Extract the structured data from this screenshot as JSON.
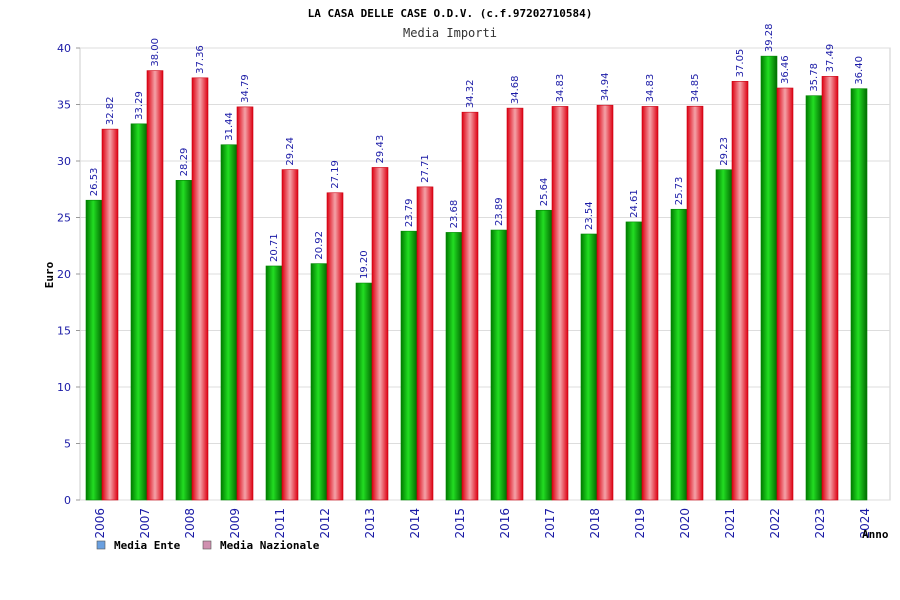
{
  "chart_data": {
    "type": "bar",
    "title": "LA CASA DELLE CASE O.D.V. (c.f.97202710584)",
    "subtitle": "Media Importi",
    "xlabel": "Anno",
    "ylabel": "Euro",
    "ylim": [
      0,
      40
    ],
    "yticks": [
      0,
      5,
      10,
      15,
      20,
      25,
      30,
      35,
      40
    ],
    "grid": true,
    "legend_position": "bottom-left",
    "categories": [
      "2006",
      "2007",
      "2008",
      "2009",
      "2011",
      "2012",
      "2013",
      "2014",
      "2015",
      "2016",
      "2017",
      "2018",
      "2019",
      "2020",
      "2021",
      "2022",
      "2023",
      "2024"
    ],
    "series": [
      {
        "name": "Media Ente",
        "color": "#00aa00",
        "legend_color": "#6aa0e0",
        "values": [
          26.53,
          33.29,
          28.29,
          31.44,
          20.71,
          20.92,
          19.2,
          23.79,
          23.68,
          23.89,
          25.64,
          23.54,
          24.61,
          25.73,
          29.23,
          39.28,
          35.78,
          36.4
        ],
        "labels": [
          "26.53",
          "33.29",
          "28.29",
          "31.44",
          "20.71",
          "20.92",
          "19.20",
          "23.79",
          "23.68",
          "23.89",
          "25.64",
          "23.54",
          "24.61",
          "25.73",
          "29.23",
          "39.28",
          "35.78",
          "36.40"
        ]
      },
      {
        "name": "Media Nazionale",
        "color": "#ee1111",
        "legend_color": "#d090b0",
        "values": [
          32.82,
          38.0,
          37.36,
          34.79,
          29.24,
          27.19,
          29.43,
          27.71,
          34.32,
          34.68,
          34.83,
          34.94,
          34.83,
          34.85,
          37.05,
          36.46,
          37.49,
          null
        ],
        "labels": [
          "32.82",
          "38.00",
          "37.36",
          "34.79",
          "29.24",
          "27.19",
          "29.43",
          "27.71",
          "34.32",
          "34.68",
          "34.83",
          "34.94",
          "34.83",
          "34.85",
          "37.05",
          "36.46",
          "37.49",
          ""
        ]
      }
    ]
  }
}
